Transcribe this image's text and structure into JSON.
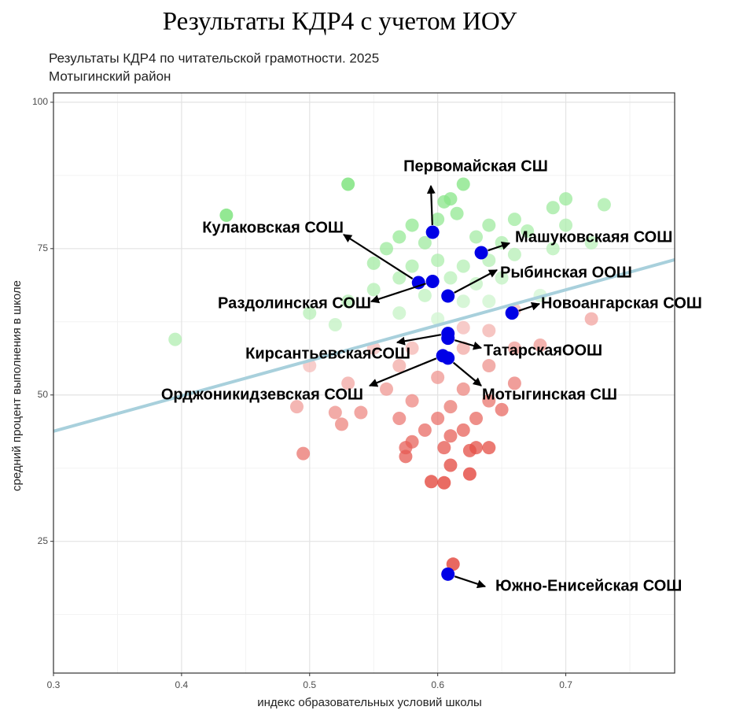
{
  "chart_data": {
    "type": "scatter",
    "title": "Результаты КДР4 с учетом ИОУ",
    "subtitle": [
      "Результаты КДР4 по читательской грамотности. 2025",
      "Мотыгинский район"
    ],
    "xlabel": "индекс образовательных условий школы",
    "ylabel": "средний процент выполнения в школе",
    "xlim": [
      0.3,
      0.785
    ],
    "ylim": [
      2.5,
      101.6
    ],
    "xticks": [
      0.3,
      0.4,
      0.5,
      0.6,
      0.7
    ],
    "yticks": [
      25,
      50,
      75,
      100
    ],
    "grid": true,
    "minor_grid": true,
    "colors": {
      "high": "#6fe06f",
      "low": "#e0352b",
      "highlight": "#0000e6",
      "trend": "#a8d0dc"
    },
    "trend": {
      "x": [
        0.3,
        0.785
      ],
      "y": [
        43.8,
        73.1
      ]
    },
    "points": {
      "x": [
        0.53,
        0.435,
        0.62,
        0.605,
        0.61,
        0.7,
        0.73,
        0.69,
        0.66,
        0.58,
        0.6,
        0.615,
        0.64,
        0.57,
        0.59,
        0.63,
        0.65,
        0.67,
        0.7,
        0.72,
        0.56,
        0.6,
        0.62,
        0.64,
        0.58,
        0.55,
        0.66,
        0.69,
        0.61,
        0.63,
        0.57,
        0.65,
        0.59,
        0.55,
        0.62,
        0.53,
        0.5,
        0.57,
        0.64,
        0.68,
        0.395,
        0.52,
        0.6,
        0.66,
        0.72,
        0.64,
        0.62,
        0.58,
        0.62,
        0.66,
        0.55,
        0.68,
        0.5,
        0.57,
        0.64,
        0.6,
        0.53,
        0.66,
        0.56,
        0.62,
        0.49,
        0.52,
        0.54,
        0.58,
        0.61,
        0.64,
        0.65,
        0.525,
        0.57,
        0.6,
        0.63,
        0.59,
        0.62,
        0.61,
        0.58,
        0.605,
        0.63,
        0.64,
        0.625,
        0.575,
        0.575,
        0.495,
        0.61,
        0.625,
        0.595,
        0.605,
        0.612
      ],
      "y": [
        86,
        80.7,
        86,
        83,
        83.5,
        83.5,
        82.5,
        82,
        80,
        79,
        80,
        81,
        79,
        77,
        76,
        77,
        76,
        78,
        79,
        76,
        75,
        73,
        72,
        73,
        72,
        72.5,
        74,
        75,
        70,
        69,
        70,
        70,
        67,
        68,
        66,
        66,
        64,
        64,
        66,
        67,
        59.5,
        62,
        63,
        64.5,
        63,
        61,
        61.5,
        58,
        58,
        58,
        58,
        58.5,
        55,
        55,
        55,
        53,
        52,
        52,
        51,
        51,
        48,
        47,
        47,
        49,
        48,
        49,
        47.5,
        45,
        46,
        46,
        46,
        44,
        44,
        43,
        42,
        41,
        41,
        41,
        40.5,
        41,
        39.5,
        40,
        38,
        36.5,
        35.2,
        35,
        21.1
      ]
    },
    "highlighted": [
      {
        "label": "Первомайская СШ",
        "x": 0.596,
        "y": 77.8
      },
      {
        "label": "Кулаковская СОШ",
        "x": 0.585,
        "y": 69.2
      },
      {
        "label": "Раздолинская СОШ",
        "x": 0.596,
        "y": 69.4
      },
      {
        "label": "Машуковскаяя СОШ",
        "x": 0.634,
        "y": 74.3
      },
      {
        "label": "Рыбинская ООШ",
        "x": 0.608,
        "y": 66.9
      },
      {
        "label": "Новоангарская СОШ",
        "x": 0.658,
        "y": 64.0
      },
      {
        "label": "КирсантьевскаяСОШ",
        "x": 0.608,
        "y": 60.5
      },
      {
        "label": "ТатарскаяООШ",
        "x": 0.608,
        "y": 59.7
      },
      {
        "label": "Орджоникидзевская СОШ",
        "x": 0.604,
        "y": 56.7
      },
      {
        "label": "Мотыгинская СШ",
        "x": 0.608,
        "y": 56.3
      },
      {
        "label": "Южно-Енисейская СОШ",
        "x": 0.608,
        "y": 19.4
      }
    ]
  }
}
